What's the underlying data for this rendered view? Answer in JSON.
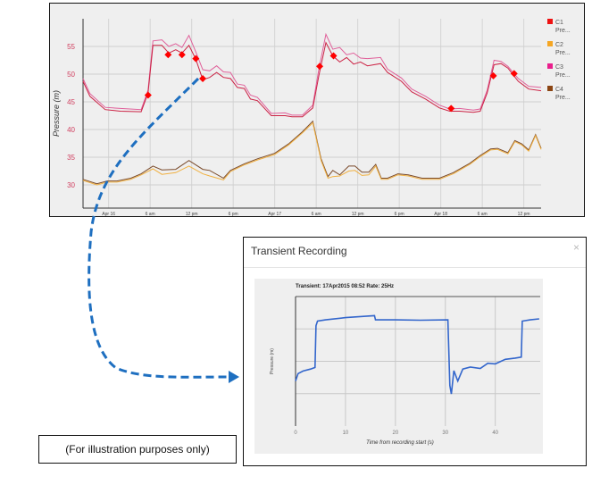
{
  "main_chart": {
    "type": "line",
    "ylabel": "Pressure (m)",
    "ylim": [
      25.8,
      60
    ],
    "y_ticks": [
      "30",
      "35",
      "40",
      "45",
      "50",
      "55"
    ],
    "x_unit": "hours from Apr 16 00:00",
    "xlim": [
      -3.7,
      62.5
    ],
    "x_ticks": [
      {
        "h": 0,
        "label": "Apr 16"
      },
      {
        "h": 6,
        "label": "6 am"
      },
      {
        "h": 12,
        "label": "12 pm"
      },
      {
        "h": 18,
        "label": "6 pm"
      },
      {
        "h": 24,
        "label": "Apr 17"
      },
      {
        "h": 30,
        "label": "6 am"
      },
      {
        "h": 36,
        "label": "12 pm"
      },
      {
        "h": 42,
        "label": "6 pm"
      },
      {
        "h": 48,
        "label": "Apr 18"
      },
      {
        "h": 54,
        "label": "6 am"
      },
      {
        "h": 60,
        "label": "12 pm"
      }
    ],
    "legend": [
      {
        "name": "C1",
        "sub": "Pre...",
        "color": "#ee1111"
      },
      {
        "name": "C2",
        "sub": "Pre...",
        "color": "#f5a623"
      },
      {
        "name": "C3",
        "sub": "Pre...",
        "color": "#e91e8c"
      },
      {
        "name": "C4",
        "sub": "Pre...",
        "color": "#8b4513"
      }
    ],
    "series": [
      {
        "name": "C3",
        "color": "#e0609a",
        "x": [
          -3.7,
          -2.7,
          -0.5,
          1.7,
          4.7,
          5.7,
          6.4,
          7.7,
          8.7,
          9.7,
          10.6,
          11.6,
          12.6,
          13.6,
          14.6,
          15.6,
          16.6,
          17.6,
          18.6,
          19.6,
          20.5,
          21.5,
          23.5,
          25.5,
          26.5,
          28,
          29.5,
          30.4,
          31.4,
          32.4,
          33.4,
          34.4,
          35.4,
          36.4,
          37.4,
          39.3,
          40.3,
          42.3,
          43.8,
          45.8,
          47.8,
          49.3,
          50.7,
          52.7,
          53.7,
          54.7,
          55.7,
          56.7,
          57.7,
          59.2,
          60.7,
          62.5
        ],
        "y": [
          49.2,
          46.5,
          44.0,
          43.8,
          43.6,
          47.1,
          56.0,
          56.2,
          55.0,
          55.5,
          54.8,
          57.0,
          54.0,
          50.8,
          50.6,
          51.5,
          50.4,
          50.3,
          48.2,
          48.0,
          46.2,
          45.8,
          42.9,
          43.0,
          42.6,
          42.6,
          44.4,
          51.0,
          57.2,
          54.5,
          54.8,
          53.5,
          53.8,
          52.9,
          52.8,
          53.0,
          50.9,
          49.3,
          47.3,
          46.0,
          44.4,
          43.7,
          43.8,
          43.5,
          43.7,
          47.1,
          52.5,
          52.3,
          51.4,
          49.2,
          47.8,
          47.6
        ]
      },
      {
        "name": "C1",
        "color": "#cc2244",
        "x": [
          -3.7,
          -2.7,
          -0.5,
          1.7,
          4.7,
          5.7,
          6.4,
          7.7,
          8.7,
          9.7,
          10.6,
          11.6,
          12.6,
          13.6,
          14.6,
          15.6,
          16.6,
          17.6,
          18.6,
          19.6,
          20.5,
          21.5,
          23.5,
          25.5,
          26.5,
          28,
          29.5,
          30.4,
          31.4,
          32.4,
          33.4,
          34.4,
          35.4,
          36.4,
          37.4,
          39.3,
          40.3,
          42.3,
          43.8,
          45.8,
          47.8,
          49.3,
          50.7,
          52.7,
          53.7,
          54.7,
          55.7,
          56.7,
          57.7,
          59.2,
          60.7,
          62.5
        ],
        "y": [
          48.7,
          46.0,
          43.6,
          43.3,
          43.2,
          46.6,
          55.2,
          55.2,
          53.8,
          54.4,
          53.8,
          55.2,
          52.7,
          49.0,
          49.4,
          50.3,
          49.4,
          49.2,
          47.6,
          47.4,
          45.5,
          45.2,
          42.5,
          42.5,
          42.3,
          42.3,
          43.9,
          49.8,
          55.7,
          53.3,
          52.2,
          53.0,
          51.8,
          52.2,
          51.5,
          51.9,
          50.3,
          48.7,
          46.8,
          45.5,
          43.9,
          43.3,
          43.3,
          43.1,
          43.3,
          46.6,
          51.7,
          51.9,
          51.1,
          48.7,
          47.3,
          47.0
        ]
      },
      {
        "name": "C4",
        "color": "#7a4a2a",
        "x": [
          -3.7,
          -1.7,
          -0.2,
          1.2,
          3.2,
          4.7,
          6.4,
          7.7,
          9.7,
          11.6,
          13.6,
          14.6,
          16.6,
          17.6,
          19.6,
          21.5,
          24,
          26,
          28,
          29.5,
          30.7,
          31.7,
          32.4,
          33.4,
          34.7,
          35.6,
          36.6,
          37.6,
          38.6,
          39.4,
          40.3,
          41.8,
          43.3,
          45.3,
          47.8,
          49.8,
          52.2,
          53.7,
          55.2,
          56.2,
          57.7,
          58.7,
          59.7,
          60.7,
          61.7,
          62.5
        ],
        "y": [
          31.0,
          30.2,
          30.7,
          30.7,
          31.2,
          32.0,
          33.4,
          32.7,
          32.8,
          34.4,
          32.8,
          32.6,
          31.2,
          32.6,
          33.8,
          34.7,
          35.7,
          37.4,
          39.6,
          41.5,
          34.7,
          31.5,
          32.6,
          31.8,
          33.4,
          33.4,
          32.3,
          32.3,
          33.7,
          31.2,
          31.2,
          32.0,
          31.8,
          31.2,
          31.2,
          32.2,
          33.9,
          35.3,
          36.5,
          36.6,
          35.8,
          38.0,
          37.4,
          36.3,
          39.1,
          36.6
        ]
      },
      {
        "name": "C2",
        "color": "#f0b040",
        "x": [
          -3.7,
          -1.7,
          -0.2,
          1.2,
          3.2,
          4.7,
          6.4,
          7.7,
          9.7,
          11.6,
          13.6,
          14.6,
          16.6,
          17.6,
          19.6,
          21.5,
          24,
          26,
          28,
          29.5,
          30.7,
          31.7,
          32.4,
          33.4,
          34.7,
          35.6,
          36.6,
          37.6,
          38.6,
          39.4,
          40.3,
          41.8,
          43.3,
          45.3,
          47.8,
          49.8,
          52.2,
          53.7,
          55.2,
          56.2,
          57.7,
          58.7,
          59.7,
          60.7,
          61.7,
          62.5
        ],
        "y": [
          30.8,
          30.0,
          30.5,
          30.5,
          31.0,
          31.8,
          32.9,
          31.9,
          32.2,
          33.4,
          32.0,
          31.6,
          30.9,
          32.4,
          33.6,
          34.5,
          35.5,
          37.2,
          39.4,
          41.2,
          34.4,
          31.2,
          31.5,
          31.6,
          32.5,
          32.6,
          31.7,
          31.8,
          33.4,
          31.0,
          31.0,
          31.8,
          31.6,
          31.0,
          31.0,
          32.0,
          33.7,
          35.1,
          36.3,
          36.4,
          35.6,
          37.8,
          37.2,
          36.1,
          38.9,
          36.4
        ]
      }
    ],
    "markers": {
      "color": "#ff0000",
      "x": [
        5.7,
        8.6,
        10.6,
        12.6,
        13.6,
        30.5,
        32.5,
        49.5,
        55.6,
        58.6
      ],
      "y": [
        46.2,
        53.5,
        53.5,
        52.8,
        49.2,
        51.4,
        53.3,
        43.8,
        49.7,
        50.1
      ]
    }
  },
  "dialog": {
    "title": "Transient Recording",
    "close_label": "×"
  },
  "chart_data": {
    "type": "line",
    "title": "Transient: 17Apr2015 08:52 Rate: 25Hz",
    "xlabel": "Time from recording start (s)",
    "ylabel": "Pressure (m)",
    "xlim": [
      0,
      49
    ],
    "ylim": [
      0,
      4
    ],
    "x_ticks": [
      "0",
      "10",
      "20",
      "30",
      "40"
    ],
    "grid": true,
    "series": [
      {
        "name": "Pressure",
        "color": "#3366cc",
        "x": [
          0,
          0.5,
          1.5,
          3,
          3.9,
          4.1,
          4.4,
          6,
          10,
          14,
          15.8,
          16,
          20,
          25,
          30.5,
          30.9,
          31.2,
          31.7,
          32.5,
          33.5,
          35,
          37,
          38.5,
          40,
          42,
          44,
          45.2,
          45.4,
          47,
          48.8
        ],
        "y": [
          1.39,
          1.62,
          1.7,
          1.76,
          1.81,
          3.1,
          3.24,
          3.28,
          3.35,
          3.39,
          3.41,
          3.28,
          3.28,
          3.27,
          3.28,
          1.25,
          0.99,
          1.71,
          1.39,
          1.76,
          1.82,
          1.78,
          1.94,
          1.92,
          2.06,
          2.1,
          2.13,
          3.24,
          3.28,
          3.31
        ]
      }
    ]
  },
  "note": "(For illustration purposes only)"
}
